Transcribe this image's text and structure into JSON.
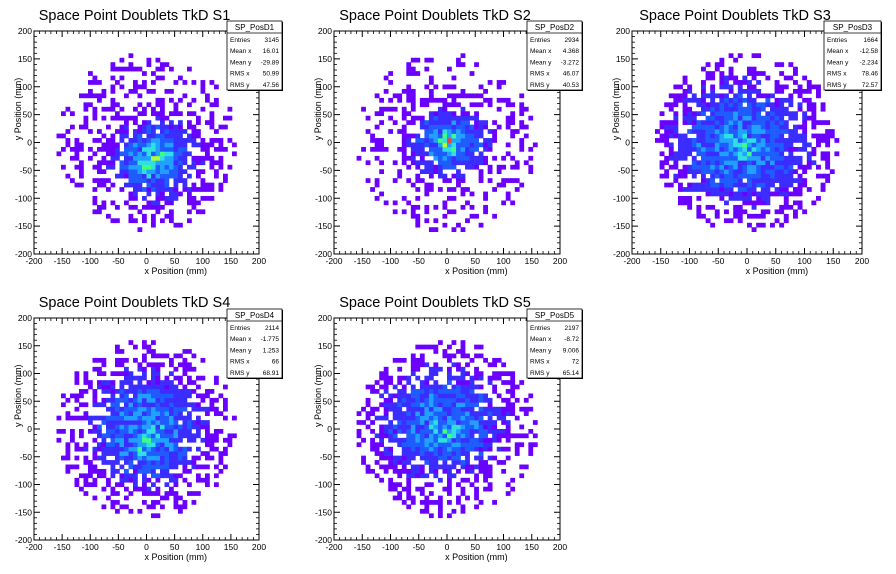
{
  "chart_data": [
    {
      "type": "heatmap",
      "title": "Space Point Doublets TkD S1",
      "xlabel": "x Position (mm)",
      "ylabel": "y Position (mm)",
      "xlim": [
        -200,
        200
      ],
      "ylim": [
        -200,
        200
      ],
      "x_ticks": [
        "-200",
        "-150",
        "-100",
        "-50",
        "0",
        "50",
        "100",
        "150",
        "200"
      ],
      "y_ticks": [
        "-200",
        "-150",
        "-100",
        "-50",
        "0",
        "50",
        "100",
        "150",
        "200"
      ],
      "stats": {
        "name": "SP_PosD1",
        "rows": [
          {
            "label": "Entries",
            "value": "3145"
          },
          {
            "label": "Mean x",
            "value": "16.01"
          },
          {
            "label": "Mean y",
            "value": "-29.89"
          },
          {
            "label": "RMS x",
            "value": "50.99"
          },
          {
            "label": "RMS y",
            "value": "47.56"
          }
        ]
      },
      "hotspots": [
        {
          "x": 15,
          "y": -30,
          "sx": 50,
          "sy": 48,
          "weight": 1.0
        },
        {
          "x": 0,
          "y": -40,
          "sx": 10,
          "sy": 10,
          "weight": 0.7
        },
        {
          "x": 25,
          "y": -20,
          "sx": 12,
          "sy": 12,
          "weight": 0.6
        }
      ],
      "disc_radius": 160
    },
    {
      "type": "heatmap",
      "title": "Space Point Doublets TkD S2",
      "xlabel": "x Position (mm)",
      "ylabel": "y Position (mm)",
      "xlim": [
        -200,
        200
      ],
      "ylim": [
        -200,
        200
      ],
      "x_ticks": [
        "-200",
        "-150",
        "-100",
        "-50",
        "0",
        "50",
        "100",
        "150",
        "200"
      ],
      "y_ticks": [
        "-200",
        "-150",
        "-100",
        "-50",
        "0",
        "50",
        "100",
        "150",
        "200"
      ],
      "stats": {
        "name": "SP_PosD2",
        "rows": [
          {
            "label": "Entries",
            "value": "2934"
          },
          {
            "label": "Mean x",
            "value": "4.368"
          },
          {
            "label": "Mean y",
            "value": "-3.272"
          },
          {
            "label": "RMS x",
            "value": "46.07"
          },
          {
            "label": "RMS y",
            "value": "40.53"
          }
        ]
      },
      "hotspots": [
        {
          "x": 5,
          "y": 0,
          "sx": 46,
          "sy": 40,
          "weight": 1.0
        },
        {
          "x": 5,
          "y": 0,
          "sx": 10,
          "sy": 10,
          "weight": 0.9
        }
      ],
      "disc_radius": 160
    },
    {
      "type": "heatmap",
      "title": "Space Point Doublets TkD S3",
      "xlabel": "x Position (mm)",
      "ylabel": "y Position (mm)",
      "xlim": [
        -200,
        200
      ],
      "ylim": [
        -200,
        200
      ],
      "x_ticks": [
        "-200",
        "-150",
        "-100",
        "-50",
        "0",
        "50",
        "100",
        "150",
        "200"
      ],
      "y_ticks": [
        "-200",
        "-150",
        "-100",
        "-50",
        "0",
        "50",
        "100",
        "150",
        "200"
      ],
      "stats": {
        "name": "SP_PosD3",
        "rows": [
          {
            "label": "Entries",
            "value": "1664"
          },
          {
            "label": "Mean x",
            "value": "-12.58"
          },
          {
            "label": "Mean y",
            "value": "-2.234"
          },
          {
            "label": "RMS x",
            "value": "78.46"
          },
          {
            "label": "RMS y",
            "value": "72.57"
          }
        ]
      },
      "hotspots": [
        {
          "x": -12,
          "y": -2,
          "sx": 78,
          "sy": 72,
          "weight": 1.0
        },
        {
          "x": -10,
          "y": -15,
          "sx": 12,
          "sy": 12,
          "weight": 0.5
        }
      ],
      "disc_radius": 160
    },
    {
      "type": "heatmap",
      "title": "Space Point Doublets TkD S4",
      "xlabel": "x Position (mm)",
      "ylabel": "y Position (mm)",
      "xlim": [
        -200,
        200
      ],
      "ylim": [
        -200,
        200
      ],
      "x_ticks": [
        "-200",
        "-150",
        "-100",
        "-50",
        "0",
        "50",
        "100",
        "150",
        "200"
      ],
      "y_ticks": [
        "-200",
        "-150",
        "-100",
        "-50",
        "0",
        "50",
        "100",
        "150",
        "200"
      ],
      "stats": {
        "name": "SP_PosD4",
        "rows": [
          {
            "label": "Entries",
            "value": "2114"
          },
          {
            "label": "Mean x",
            "value": "-1.775"
          },
          {
            "label": "Mean y",
            "value": "1.253"
          },
          {
            "label": "RMS x",
            "value": "66"
          },
          {
            "label": "RMS y",
            "value": "68.91"
          }
        ]
      },
      "hotspots": [
        {
          "x": -2,
          "y": 1,
          "sx": 66,
          "sy": 69,
          "weight": 1.0
        },
        {
          "x": 0,
          "y": -30,
          "sx": 10,
          "sy": 12,
          "weight": 0.7
        }
      ],
      "disc_radius": 160
    },
    {
      "type": "heatmap",
      "title": "Space Point Doublets TkD S5",
      "xlabel": "x Position (mm)",
      "ylabel": "y Position (mm)",
      "xlim": [
        -200,
        200
      ],
      "ylim": [
        -200,
        200
      ],
      "x_ticks": [
        "-200",
        "-150",
        "-100",
        "-50",
        "0",
        "50",
        "100",
        "150",
        "200"
      ],
      "y_ticks": [
        "-200",
        "-150",
        "-100",
        "-50",
        "0",
        "50",
        "100",
        "150",
        "200"
      ],
      "stats": {
        "name": "SP_PosD5",
        "rows": [
          {
            "label": "Entries",
            "value": "2197"
          },
          {
            "label": "Mean x",
            "value": "-8.72"
          },
          {
            "label": "Mean y",
            "value": "9.006"
          },
          {
            "label": "RMS x",
            "value": "72"
          },
          {
            "label": "RMS y",
            "value": "65.14"
          }
        ]
      },
      "hotspots": [
        {
          "x": -9,
          "y": 9,
          "sx": 72,
          "sy": 65,
          "weight": 1.0
        },
        {
          "x": 0,
          "y": 0,
          "sx": 10,
          "sy": 10,
          "weight": 0.8
        }
      ],
      "disc_radius": 160
    }
  ],
  "palette": [
    "#6a00ff",
    "#3b2cff",
    "#1f5cff",
    "#20a0ff",
    "#30e0e0",
    "#40ff80",
    "#b0ff30",
    "#ffe020",
    "#ff4020"
  ]
}
